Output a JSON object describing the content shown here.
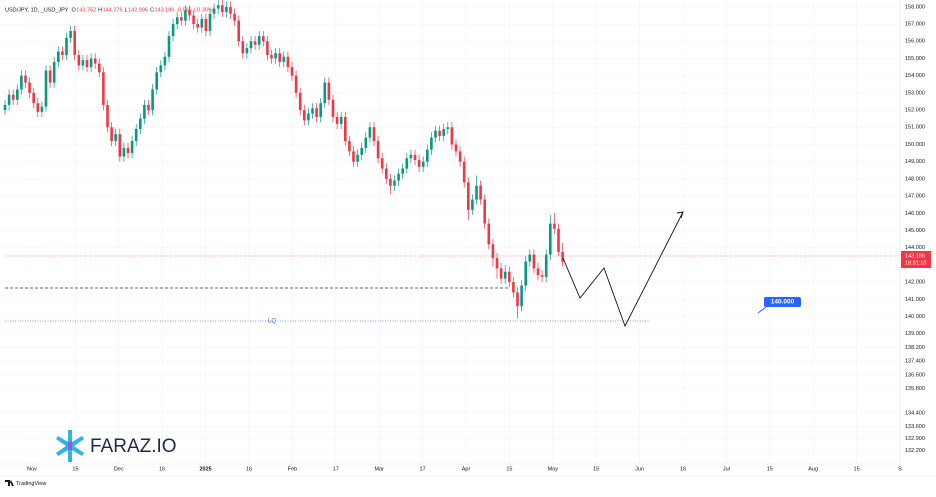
{
  "chart_data": {
    "type": "candlestick",
    "legend": {
      "symbol": "USD/JPY, 1D, _USD_JPY",
      "keys": [
        "O",
        "H",
        "L",
        "C"
      ],
      "change": "-0.566 (-0.39%)"
    },
    "up_color": "#089981",
    "down_color": "#f23645",
    "grid": true,
    "ylim": [
      131.6,
      158.4
    ],
    "yticks": [
      {
        "value": 158,
        "label": "158.000"
      },
      {
        "value": 157,
        "label": "157.000"
      },
      {
        "value": 156,
        "label": "156.000"
      },
      {
        "value": 155,
        "label": "155.000"
      },
      {
        "value": 154,
        "label": "154.000"
      },
      {
        "value": 153,
        "label": "153.000"
      },
      {
        "value": 152,
        "label": "152.000"
      },
      {
        "value": 151,
        "label": "151.000"
      },
      {
        "value": 150,
        "label": "150.000"
      },
      {
        "value": 149,
        "label": "149.000"
      },
      {
        "value": 148,
        "label": "148.000"
      },
      {
        "value": 147,
        "label": "147.000"
      },
      {
        "value": 146,
        "label": "146.000"
      },
      {
        "value": 145,
        "label": "145.000"
      },
      {
        "value": 144,
        "label": "144.000"
      },
      {
        "value": 142,
        "label": "142.000"
      },
      {
        "value": 141,
        "label": "141.000"
      },
      {
        "value": 140,
        "label": "140.000"
      },
      {
        "value": 139,
        "label": "139.000"
      },
      {
        "value": 138.2,
        "label": "138.200"
      },
      {
        "value": 137.4,
        "label": "137.400"
      },
      {
        "value": 136.6,
        "label": "136.600"
      },
      {
        "value": 135.8,
        "label": "135.800"
      },
      {
        "value": 134.4,
        "label": "134.400"
      },
      {
        "value": 133.6,
        "label": "133.600"
      },
      {
        "value": 132.9,
        "label": "132.900"
      },
      {
        "value": 132.2,
        "label": "132.200"
      }
    ],
    "xlabels": [
      "Nov",
      "15",
      "Dec",
      "16",
      "2025",
      "16",
      "Feb",
      "17",
      "Mar",
      "17",
      "Apr",
      "15",
      "May",
      "15",
      "Jun",
      "16",
      "Jul",
      "15",
      "Aug",
      "15",
      "S"
    ],
    "ohlc": [
      [
        152.0,
        152.6,
        151.7,
        152.3
      ],
      [
        152.3,
        153.2,
        152.0,
        152.9
      ],
      [
        152.9,
        153.2,
        152.3,
        152.6
      ],
      [
        152.6,
        153.5,
        152.3,
        153.2
      ],
      [
        153.2,
        154.3,
        152.9,
        154.0
      ],
      [
        154.0,
        154.3,
        153.3,
        153.6
      ],
      [
        153.6,
        153.9,
        152.7,
        153.0
      ],
      [
        153.0,
        153.3,
        152.1,
        152.4
      ],
      [
        152.4,
        152.7,
        151.6,
        151.9
      ],
      [
        151.9,
        152.5,
        151.6,
        152.2
      ],
      [
        152.2,
        154.6,
        151.9,
        154.3
      ],
      [
        154.3,
        154.6,
        153.3,
        153.6
      ],
      [
        153.6,
        155.1,
        153.3,
        154.8
      ],
      [
        154.8,
        155.7,
        154.5,
        155.4
      ],
      [
        155.4,
        155.7,
        154.9,
        155.2
      ],
      [
        155.2,
        156.5,
        154.9,
        156.2
      ],
      [
        156.2,
        156.9,
        155.9,
        156.6
      ],
      [
        156.6,
        156.9,
        154.9,
        155.2
      ],
      [
        155.2,
        155.5,
        154.3,
        154.6
      ],
      [
        154.6,
        155.2,
        154.3,
        154.9
      ],
      [
        154.9,
        155.2,
        154.2,
        154.5
      ],
      [
        154.5,
        155.3,
        154.2,
        155.0
      ],
      [
        155.0,
        155.3,
        154.4,
        154.7
      ],
      [
        154.7,
        155.0,
        153.9,
        154.2
      ],
      [
        154.2,
        154.5,
        152.0,
        152.3
      ],
      [
        152.3,
        152.6,
        150.7,
        151.0
      ],
      [
        151.0,
        151.3,
        149.9,
        150.2
      ],
      [
        150.2,
        150.9,
        149.9,
        150.6
      ],
      [
        150.6,
        150.9,
        149.0,
        149.3
      ],
      [
        149.3,
        150.1,
        149.0,
        149.8
      ],
      [
        149.8,
        150.1,
        149.2,
        149.5
      ],
      [
        149.5,
        150.5,
        149.2,
        150.2
      ],
      [
        150.2,
        151.2,
        149.9,
        150.9
      ],
      [
        150.9,
        151.8,
        150.6,
        151.5
      ],
      [
        151.5,
        152.6,
        151.2,
        152.3
      ],
      [
        152.3,
        152.6,
        151.7,
        152.0
      ],
      [
        152.0,
        153.5,
        151.7,
        153.2
      ],
      [
        153.2,
        154.5,
        152.9,
        154.2
      ],
      [
        154.2,
        154.9,
        153.9,
        154.6
      ],
      [
        154.6,
        155.4,
        154.3,
        155.1
      ],
      [
        155.1,
        156.6,
        154.8,
        156.3
      ],
      [
        156.3,
        157.3,
        156.0,
        157.0
      ],
      [
        157.0,
        157.7,
        156.7,
        157.4
      ],
      [
        157.4,
        157.7,
        156.9,
        157.2
      ],
      [
        157.2,
        158.1,
        156.9,
        157.8
      ],
      [
        157.8,
        158.1,
        157.2,
        157.5
      ],
      [
        157.5,
        157.8,
        156.7,
        157.0
      ],
      [
        157.0,
        157.3,
        156.5,
        156.8
      ],
      [
        156.8,
        157.6,
        156.5,
        157.3
      ],
      [
        157.3,
        157.6,
        156.3,
        156.6
      ],
      [
        156.6,
        157.9,
        156.3,
        157.6
      ],
      [
        157.6,
        158.2,
        157.3,
        157.9
      ],
      [
        157.9,
        158.4,
        157.6,
        158.1
      ],
      [
        158.1,
        158.4,
        157.4,
        157.7
      ],
      [
        157.7,
        158.3,
        157.4,
        158.0
      ],
      [
        158.0,
        158.3,
        157.3,
        157.6
      ],
      [
        157.6,
        157.9,
        156.9,
        157.2
      ],
      [
        157.2,
        157.5,
        155.7,
        156.0
      ],
      [
        156.0,
        156.3,
        155.0,
        155.3
      ],
      [
        155.3,
        155.9,
        155.0,
        155.6
      ],
      [
        155.6,
        156.3,
        155.3,
        156.0
      ],
      [
        156.0,
        156.3,
        155.5,
        155.8
      ],
      [
        155.8,
        156.6,
        155.5,
        156.3
      ],
      [
        156.3,
        156.6,
        155.7,
        156.0
      ],
      [
        156.0,
        156.3,
        154.9,
        155.2
      ],
      [
        155.2,
        155.5,
        154.7,
        155.0
      ],
      [
        155.0,
        155.6,
        154.7,
        155.3
      ],
      [
        155.3,
        155.6,
        154.5,
        154.8
      ],
      [
        154.8,
        155.4,
        154.5,
        155.1
      ],
      [
        155.1,
        155.4,
        154.2,
        154.5
      ],
      [
        154.5,
        154.8,
        153.7,
        154.0
      ],
      [
        154.0,
        154.3,
        152.7,
        153.0
      ],
      [
        153.0,
        153.3,
        151.7,
        152.0
      ],
      [
        152.0,
        152.3,
        151.1,
        151.4
      ],
      [
        151.4,
        152.1,
        151.1,
        151.8
      ],
      [
        151.8,
        152.4,
        151.5,
        152.1
      ],
      [
        152.1,
        152.4,
        151.3,
        151.6
      ],
      [
        151.6,
        152.7,
        151.3,
        152.4
      ],
      [
        152.4,
        153.9,
        152.1,
        153.6
      ],
      [
        153.6,
        153.9,
        152.3,
        152.6
      ],
      [
        152.6,
        152.9,
        151.3,
        151.6
      ],
      [
        151.6,
        151.9,
        150.9,
        151.2
      ],
      [
        151.2,
        151.9,
        150.9,
        151.6
      ],
      [
        151.6,
        151.9,
        149.9,
        150.2
      ],
      [
        150.2,
        150.5,
        149.3,
        149.6
      ],
      [
        149.6,
        149.9,
        148.7,
        149.0
      ],
      [
        149.0,
        149.7,
        148.7,
        149.4
      ],
      [
        149.4,
        150.1,
        149.1,
        149.8
      ],
      [
        149.8,
        150.7,
        149.5,
        150.4
      ],
      [
        150.4,
        151.3,
        150.1,
        151.0
      ],
      [
        151.0,
        151.3,
        149.9,
        150.2
      ],
      [
        150.2,
        150.5,
        148.9,
        149.2
      ],
      [
        149.2,
        149.5,
        148.3,
        148.6
      ],
      [
        148.6,
        148.9,
        147.7,
        148.0
      ],
      [
        148.0,
        148.3,
        147.1,
        147.6
      ],
      [
        147.6,
        148.2,
        147.3,
        147.9
      ],
      [
        147.9,
        148.6,
        147.6,
        148.3
      ],
      [
        148.3,
        148.9,
        148.0,
        148.6
      ],
      [
        148.6,
        149.5,
        148.3,
        149.2
      ],
      [
        149.2,
        149.7,
        148.9,
        149.4
      ],
      [
        149.4,
        149.7,
        148.8,
        149.1
      ],
      [
        149.1,
        149.4,
        148.4,
        148.7
      ],
      [
        148.7,
        149.3,
        148.4,
        149.0
      ],
      [
        149.0,
        150.0,
        148.7,
        149.7
      ],
      [
        149.7,
        150.7,
        149.4,
        150.4
      ],
      [
        150.4,
        151.1,
        150.1,
        150.8
      ],
      [
        150.8,
        151.1,
        150.2,
        150.5
      ],
      [
        150.5,
        151.2,
        150.2,
        150.9
      ],
      [
        150.9,
        151.3,
        150.6,
        151.0
      ],
      [
        151.0,
        151.3,
        149.7,
        150.0
      ],
      [
        150.0,
        150.3,
        149.3,
        149.6
      ],
      [
        149.6,
        149.9,
        148.7,
        149.0
      ],
      [
        149.0,
        149.3,
        147.5,
        147.8
      ],
      [
        147.8,
        148.1,
        145.6,
        146.2
      ],
      [
        146.2,
        147.1,
        145.9,
        146.8
      ],
      [
        146.8,
        148.2,
        146.5,
        147.6
      ],
      [
        147.6,
        147.9,
        146.5,
        146.8
      ],
      [
        146.8,
        147.1,
        145.1,
        145.4
      ],
      [
        145.4,
        145.7,
        143.9,
        144.2
      ],
      [
        144.2,
        144.5,
        142.9,
        143.4
      ],
      [
        143.4,
        143.7,
        142.2,
        142.8
      ],
      [
        142.8,
        143.1,
        141.9,
        142.2
      ],
      [
        142.2,
        143.0,
        141.9,
        142.6
      ],
      [
        142.6,
        142.9,
        141.7,
        142.0
      ],
      [
        142.0,
        142.3,
        141.1,
        141.4
      ],
      [
        141.4,
        141.7,
        139.9,
        140.6
      ],
      [
        140.6,
        142.1,
        140.3,
        141.8
      ],
      [
        141.8,
        143.5,
        141.5,
        143.2
      ],
      [
        143.2,
        143.9,
        142.9,
        143.6
      ],
      [
        143.6,
        143.9,
        142.5,
        142.8
      ],
      [
        142.8,
        143.1,
        142.1,
        142.4
      ],
      [
        142.4,
        142.7,
        142.0,
        142.3
      ],
      [
        142.3,
        143.9,
        142.0,
        143.6
      ],
      [
        143.6,
        145.9,
        143.3,
        145.4
      ],
      [
        145.4,
        146.0,
        144.8,
        145.1
      ],
      [
        145.1,
        145.4,
        143.5,
        143.752
      ],
      [
        143.752,
        144.276,
        142.906,
        143.186
      ]
    ],
    "countdown": "18:31:10",
    "annotations": {
      "lq": "LQ",
      "target": "140.000"
    }
  },
  "logo": {
    "text": "FARAZ.IO"
  },
  "footer": {
    "brand": "TradingView"
  }
}
